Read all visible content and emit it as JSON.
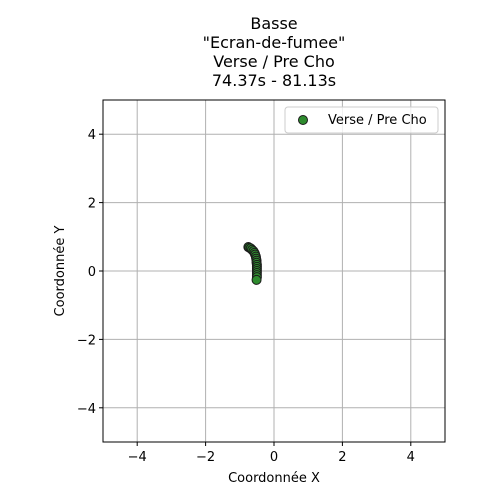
{
  "chart_data": {
    "type": "scatter",
    "title_lines": [
      "Basse",
      "\"Ecran-de-fumee\"",
      "Verse / Pre Cho",
      "74.37s - 81.13s"
    ],
    "xlabel": "Coordonnée X",
    "ylabel": "Coordonnée Y",
    "xlim": [
      -5,
      5
    ],
    "ylim": [
      -5,
      5
    ],
    "xticks": [
      -4,
      -2,
      0,
      2,
      4
    ],
    "yticks": [
      -4,
      -2,
      0,
      2,
      4
    ],
    "tick_labels_x": [
      "−4",
      "−2",
      "0",
      "2",
      "4"
    ],
    "tick_labels_y": [
      "−4",
      "−2",
      "0",
      "2",
      "4"
    ],
    "grid": true,
    "legend_position": "top-right",
    "series": [
      {
        "name": "Verse / Pre Cho",
        "color": "#2e8b2e",
        "edge_color": "#1a1a1a",
        "points": [
          {
            "x": -0.75,
            "y": 0.7
          },
          {
            "x": -0.72,
            "y": 0.68
          },
          {
            "x": -0.68,
            "y": 0.66
          },
          {
            "x": -0.64,
            "y": 0.62
          },
          {
            "x": -0.6,
            "y": 0.58
          },
          {
            "x": -0.57,
            "y": 0.53
          },
          {
            "x": -0.55,
            "y": 0.48
          },
          {
            "x": -0.53,
            "y": 0.42
          },
          {
            "x": -0.52,
            "y": 0.36
          },
          {
            "x": -0.51,
            "y": 0.3
          },
          {
            "x": -0.51,
            "y": 0.24
          },
          {
            "x": -0.5,
            "y": 0.18
          },
          {
            "x": -0.5,
            "y": 0.12
          },
          {
            "x": -0.5,
            "y": 0.06
          },
          {
            "x": -0.5,
            "y": 0.0
          },
          {
            "x": -0.5,
            "y": -0.06
          },
          {
            "x": -0.5,
            "y": -0.12
          },
          {
            "x": -0.5,
            "y": -0.18
          },
          {
            "x": -0.51,
            "y": -0.26
          }
        ]
      }
    ]
  }
}
